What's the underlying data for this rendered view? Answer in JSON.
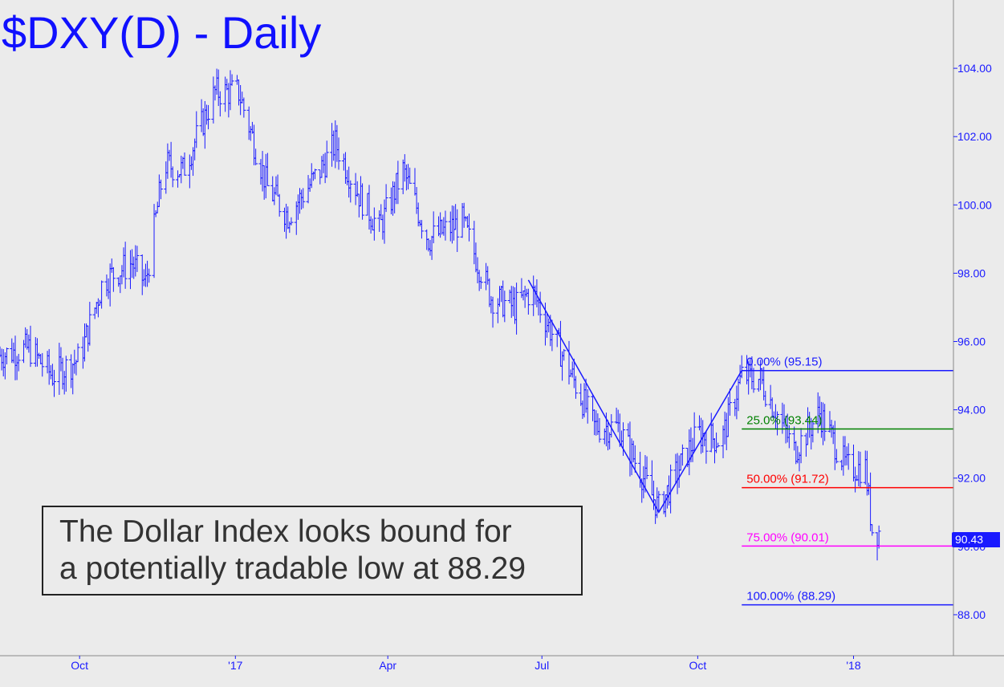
{
  "chart_data": {
    "type": "ohlc-bar",
    "title": "$DXY(D) - Daily",
    "y_axis": {
      "range": [
        86.8,
        106.0
      ],
      "ticks": [
        88.0,
        90.0,
        92.0,
        94.0,
        96.0,
        98.0,
        100.0,
        102.0,
        104.0
      ],
      "tick_labels": [
        "88.00",
        "90.00",
        "92.00",
        "94.00",
        "96.00",
        "98.00",
        "100.00",
        "102.00",
        "104.00"
      ],
      "position": "right"
    },
    "x_axis": {
      "range": [
        "2016-08-15",
        "2018-03-01"
      ],
      "ticks": [
        "2016-10-01",
        "2017-01-01",
        "2017-04-01",
        "2017-07-01",
        "2017-10-01",
        "2018-01-01"
      ],
      "tick_labels": [
        "Oct",
        "'17",
        "Apr",
        "Jul",
        "Oct",
        "'18"
      ]
    },
    "last_price": "90.43",
    "key_closes": [
      {
        "date": "2016-08-15",
        "close": 95.6
      },
      {
        "date": "2016-09-01",
        "close": 95.8
      },
      {
        "date": "2016-09-15",
        "close": 95.0
      },
      {
        "date": "2016-10-01",
        "close": 95.5
      },
      {
        "date": "2016-10-15",
        "close": 97.8
      },
      {
        "date": "2016-11-01",
        "close": 98.3
      },
      {
        "date": "2016-11-09",
        "close": 97.7
      },
      {
        "date": "2016-11-20",
        "close": 101.2
      },
      {
        "date": "2016-12-01",
        "close": 101.0
      },
      {
        "date": "2016-12-20",
        "close": 103.3
      },
      {
        "date": "2017-01-03",
        "close": 103.3
      },
      {
        "date": "2017-01-20",
        "close": 100.5
      },
      {
        "date": "2017-02-01",
        "close": 99.7
      },
      {
        "date": "2017-02-20",
        "close": 101.0
      },
      {
        "date": "2017-03-01",
        "close": 101.8
      },
      {
        "date": "2017-03-15",
        "close": 100.3
      },
      {
        "date": "2017-03-27",
        "close": 99.3
      },
      {
        "date": "2017-04-10",
        "close": 101.0
      },
      {
        "date": "2017-04-25",
        "close": 99.0
      },
      {
        "date": "2017-05-15",
        "close": 99.5
      },
      {
        "date": "2017-06-01",
        "close": 97.3
      },
      {
        "date": "2017-06-15",
        "close": 97.0
      },
      {
        "date": "2017-06-25",
        "close": 97.5
      },
      {
        "date": "2017-07-15",
        "close": 95.4
      },
      {
        "date": "2017-08-01",
        "close": 93.5
      },
      {
        "date": "2017-08-15",
        "close": 93.5
      },
      {
        "date": "2017-09-08",
        "close": 91.1
      },
      {
        "date": "2017-09-20",
        "close": 92.3
      },
      {
        "date": "2017-10-01",
        "close": 93.3
      },
      {
        "date": "2017-10-15",
        "close": 93.1
      },
      {
        "date": "2017-10-27",
        "close": 95.0
      },
      {
        "date": "2017-11-07",
        "close": 94.9
      },
      {
        "date": "2017-11-27",
        "close": 92.8
      },
      {
        "date": "2017-12-12",
        "close": 93.9
      },
      {
        "date": "2017-12-28",
        "close": 92.3
      },
      {
        "date": "2018-01-08",
        "close": 92.3
      },
      {
        "date": "2018-01-12",
        "close": 90.5
      },
      {
        "date": "2018-01-16",
        "close": 90.43
      }
    ],
    "abc_pattern": [
      {
        "date": "2017-06-23",
        "value": 97.8
      },
      {
        "date": "2017-09-08",
        "value": 91.0
      },
      {
        "date": "2017-10-27",
        "value": 95.15
      }
    ],
    "fib_levels": [
      {
        "label": "0.00% (95.15)",
        "value": 95.15,
        "color": "#1a1aff"
      },
      {
        "label": "25.0% (93.44)",
        "value": 93.44,
        "color": "#008000"
      },
      {
        "label": "50.00% (91.72)",
        "value": 91.72,
        "color": "#ff0000"
      },
      {
        "label": "75.00% (90.01)",
        "value": 90.01,
        "color": "#ff00ff"
      },
      {
        "label": "100.00% (88.29)",
        "value": 88.29,
        "color": "#1a1aff"
      }
    ],
    "annotation": [
      "The Dollar Index looks bound for",
      "a potentially tradable low at 88.29"
    ]
  },
  "colors": {
    "background": "#ebebeb",
    "bars": "#1a1aff",
    "axis": "#1a1aff"
  }
}
